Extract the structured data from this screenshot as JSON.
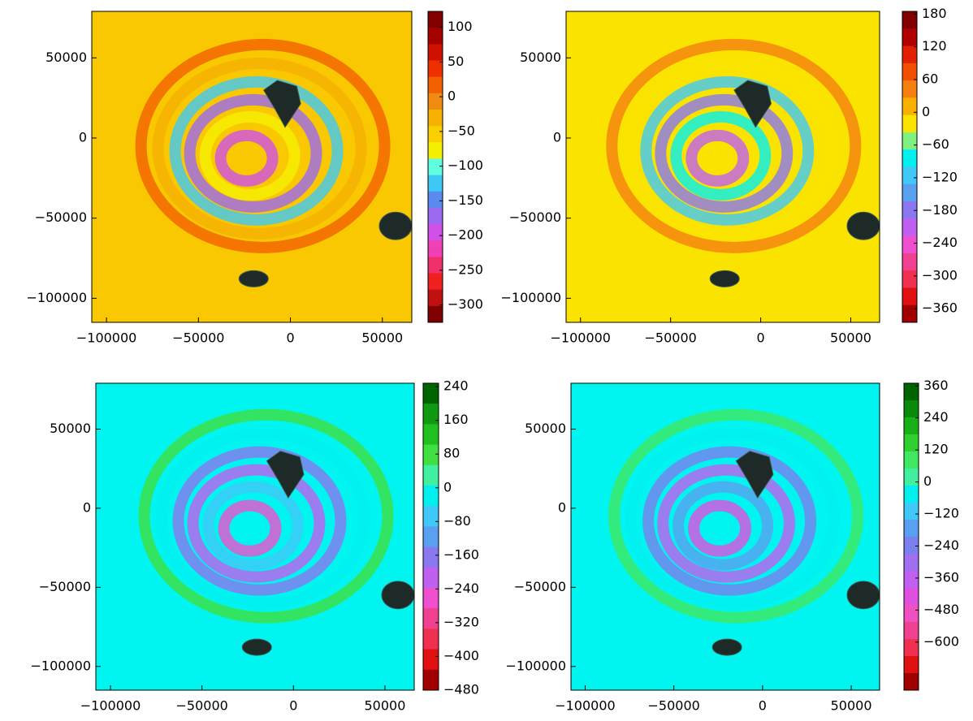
{
  "chart_data": [
    {
      "type": "contour",
      "background": "#fac800",
      "xlim": [
        -108000,
        66000
      ],
      "ylim": [
        -115000,
        79000
      ],
      "xticks": [
        {
          "value": -100000,
          "label": "−100000"
        },
        {
          "value": -50000,
          "label": "−50000"
        },
        0,
        50000
      ],
      "yticks": [
        50000,
        0,
        {
          "value": -50000,
          "label": "−50000"
        },
        {
          "value": -100000,
          "label": "−100000"
        }
      ],
      "colorbar": {
        "lim": [
          -325,
          123
        ],
        "ticks": [
          100,
          50,
          0,
          {
            "value": -50,
            "label": "−50"
          },
          {
            "value": -100,
            "label": "−100"
          },
          {
            "value": -150,
            "label": "−150"
          },
          {
            "value": -200,
            "label": "−200"
          },
          {
            "value": -250,
            "label": "−250"
          },
          {
            "value": -300,
            "label": "−300"
          }
        ],
        "colors": [
          "#800000",
          "#a50000",
          "#d01000",
          "#ee3000",
          "#f26000",
          "#f08a10",
          "#f5b000",
          "#fad000",
          "#f5f000",
          "#60ffe0",
          "#3ec8f5",
          "#5a8af0",
          "#9b6af0",
          "#d050e8",
          "#f040b8",
          "#f0306a",
          "#f02020",
          "#c01010",
          "#800000"
        ]
      }
    },
    {
      "type": "contour",
      "background": "#fbe300",
      "xlim": [
        -108000,
        66000
      ],
      "ylim": [
        -115000,
        79000
      ],
      "xticks": [
        {
          "value": -100000,
          "label": "−100000"
        },
        {
          "value": -50000,
          "label": "−50000"
        },
        0,
        50000
      ],
      "yticks": [
        50000,
        0,
        {
          "value": -50000,
          "label": "−50000"
        },
        {
          "value": -100000,
          "label": "−100000"
        }
      ],
      "colorbar": {
        "lim": [
          -385,
          185
        ],
        "ticks": [
          180,
          120,
          60,
          0,
          {
            "value": -60,
            "label": "−60"
          },
          {
            "value": -120,
            "label": "−120"
          },
          {
            "value": -180,
            "label": "−180"
          },
          {
            "value": -240,
            "label": "−240"
          },
          {
            "value": -300,
            "label": "−300"
          },
          {
            "value": -360,
            "label": "−360"
          }
        ],
        "colors": [
          "#800000",
          "#b00000",
          "#e02000",
          "#f05000",
          "#f58010",
          "#f8b000",
          "#fbe300",
          "#80f080",
          "#00f0f0",
          "#40c8f8",
          "#5aa0f0",
          "#8a78f0",
          "#c060f0",
          "#f050d0",
          "#f04090",
          "#f03050",
          "#e01010",
          "#a00000"
        ]
      }
    },
    {
      "type": "contour",
      "background": "#00f5f0",
      "xlim": [
        -108000,
        66000
      ],
      "ylim": [
        -115000,
        79000
      ],
      "xticks": [
        {
          "value": -100000,
          "label": "−100000"
        },
        {
          "value": -50000,
          "label": "−50000"
        },
        0,
        50000
      ],
      "yticks": [
        50000,
        0,
        {
          "value": -50000,
          "label": "−50000"
        },
        {
          "value": -100000,
          "label": "−100000"
        }
      ],
      "colorbar": {
        "lim": [
          -480,
          248
        ],
        "ticks": [
          240,
          160,
          80,
          0,
          {
            "value": -80,
            "label": "−80"
          },
          {
            "value": -160,
            "label": "−160"
          },
          {
            "value": -240,
            "label": "−240"
          },
          {
            "value": -320,
            "label": "−320"
          },
          {
            "value": -400,
            "label": "−400"
          },
          {
            "value": -480,
            "label": "−480"
          }
        ],
        "colors": [
          "#006400",
          "#109a10",
          "#20c020",
          "#40e040",
          "#40f0a0",
          "#00f0f0",
          "#40c8f8",
          "#5aa0f0",
          "#8a78f0",
          "#c060f0",
          "#f050d0",
          "#f04090",
          "#f03050",
          "#e01010",
          "#a00000"
        ]
      }
    },
    {
      "type": "contour",
      "background": "#00f5f0",
      "xlim": [
        -108000,
        66000
      ],
      "ylim": [
        -115000,
        79000
      ],
      "xticks": [
        {
          "value": -100000,
          "label": "−100000"
        },
        {
          "value": -50000,
          "label": "−50000"
        },
        0,
        50000
      ],
      "yticks": [
        50000,
        0,
        {
          "value": -50000,
          "label": "−50000"
        },
        {
          "value": -100000,
          "label": "−100000"
        }
      ],
      "colorbar": {
        "lim": [
          -780,
          370
        ],
        "ticks": [
          360,
          240,
          120,
          0,
          {
            "value": -120,
            "label": "−120"
          },
          {
            "value": -240,
            "label": "−240"
          },
          {
            "value": -360,
            "label": "−360"
          },
          {
            "value": -480,
            "label": "−480"
          },
          {
            "value": -600,
            "label": "−600"
          }
        ],
        "colors": [
          "#006400",
          "#0a8a0a",
          "#18b018",
          "#30d030",
          "#40e860",
          "#40f0a0",
          "#00f0f0",
          "#40c8f8",
          "#5aa0f0",
          "#7a80f0",
          "#a070f0",
          "#c060f0",
          "#e050e0",
          "#f050c0",
          "#f04090",
          "#f03050",
          "#e01010",
          "#a00000"
        ]
      }
    }
  ]
}
